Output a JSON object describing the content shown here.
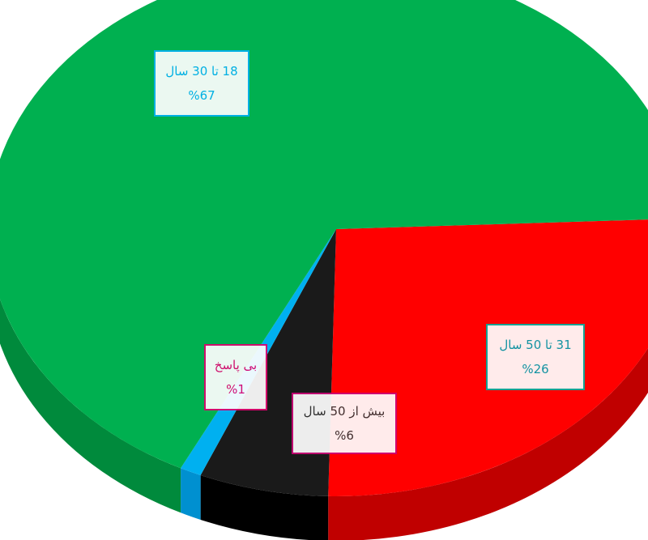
{
  "chart_data": {
    "type": "pie",
    "style": "3d",
    "slices": [
      {
        "label": "31 تا 50 سال",
        "value": 26,
        "value_label": "%26",
        "color": "#ff0000",
        "side_color": "#c00000",
        "label_border": "#00b0a0",
        "label_text": "#00a0b0"
      },
      {
        "label": "بیش از 50 سال",
        "value": 6,
        "value_label": "%6",
        "color": "#1a1a1a",
        "side_color": "#000000",
        "label_border": "#cc0077",
        "label_text": "#333333"
      },
      {
        "label": "بی پاسخ",
        "value": 1,
        "value_label": "%1",
        "color": "#00b0f0",
        "side_color": "#0090d0",
        "label_border": "#e0006f",
        "label_text": "#e0006f"
      },
      {
        "label": "18 تا 30 سال",
        "value": 67,
        "value_label": "%67",
        "color": "#00b050",
        "side_color": "#008a3c",
        "label_border": "#00b0f0",
        "label_text": "#00b0f0"
      }
    ]
  }
}
